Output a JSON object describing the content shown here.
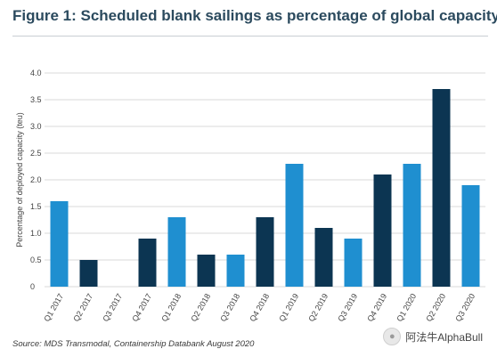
{
  "title": "Figure 1: Scheduled blank sailings as percentage of global capacity",
  "source": "Source: MDS Transmodal, Containership Databank August 2020",
  "watermark": {
    "icon": "wechat-icon",
    "text": "阿法牛AlphaBull"
  },
  "colors": {
    "light": "#1f8fd0",
    "dark": "#0c3552",
    "grid": "#d9d9d9",
    "text": "#444444"
  },
  "chart_data": {
    "type": "bar",
    "ylabel": "Percentage of deployed capacity (teu)",
    "xlabel": "",
    "ylim": [
      0,
      4.0
    ],
    "yticks": [
      "4.0",
      "3.5",
      "3.0",
      "2.5",
      "2.0",
      "1.5",
      "1.0",
      "0.5",
      "0"
    ],
    "categories": [
      "Q1 2017",
      "Q2 2017",
      "Q3 2017",
      "Q4 2017",
      "Q1 2018",
      "Q2 2018",
      "Q3 2018",
      "Q4 2018",
      "Q1 2019",
      "Q2 2019",
      "Q3 2019",
      "Q4 2019",
      "Q1 2020",
      "Q2 2020",
      "Q3 2020"
    ],
    "values": [
      1.6,
      0.5,
      0,
      0.9,
      1.3,
      0.6,
      0.6,
      1.3,
      2.3,
      1.1,
      0.9,
      2.1,
      2.3,
      3.7,
      1.9
    ],
    "bar_colors": [
      "#1f8fd0",
      "#0c3552",
      "#0c3552",
      "#0c3552",
      "#1f8fd0",
      "#0c3552",
      "#1f8fd0",
      "#0c3552",
      "#1f8fd0",
      "#0c3552",
      "#1f8fd0",
      "#0c3552",
      "#1f8fd0",
      "#0c3552",
      "#1f8fd0"
    ],
    "grid": true,
    "legend": "none"
  }
}
